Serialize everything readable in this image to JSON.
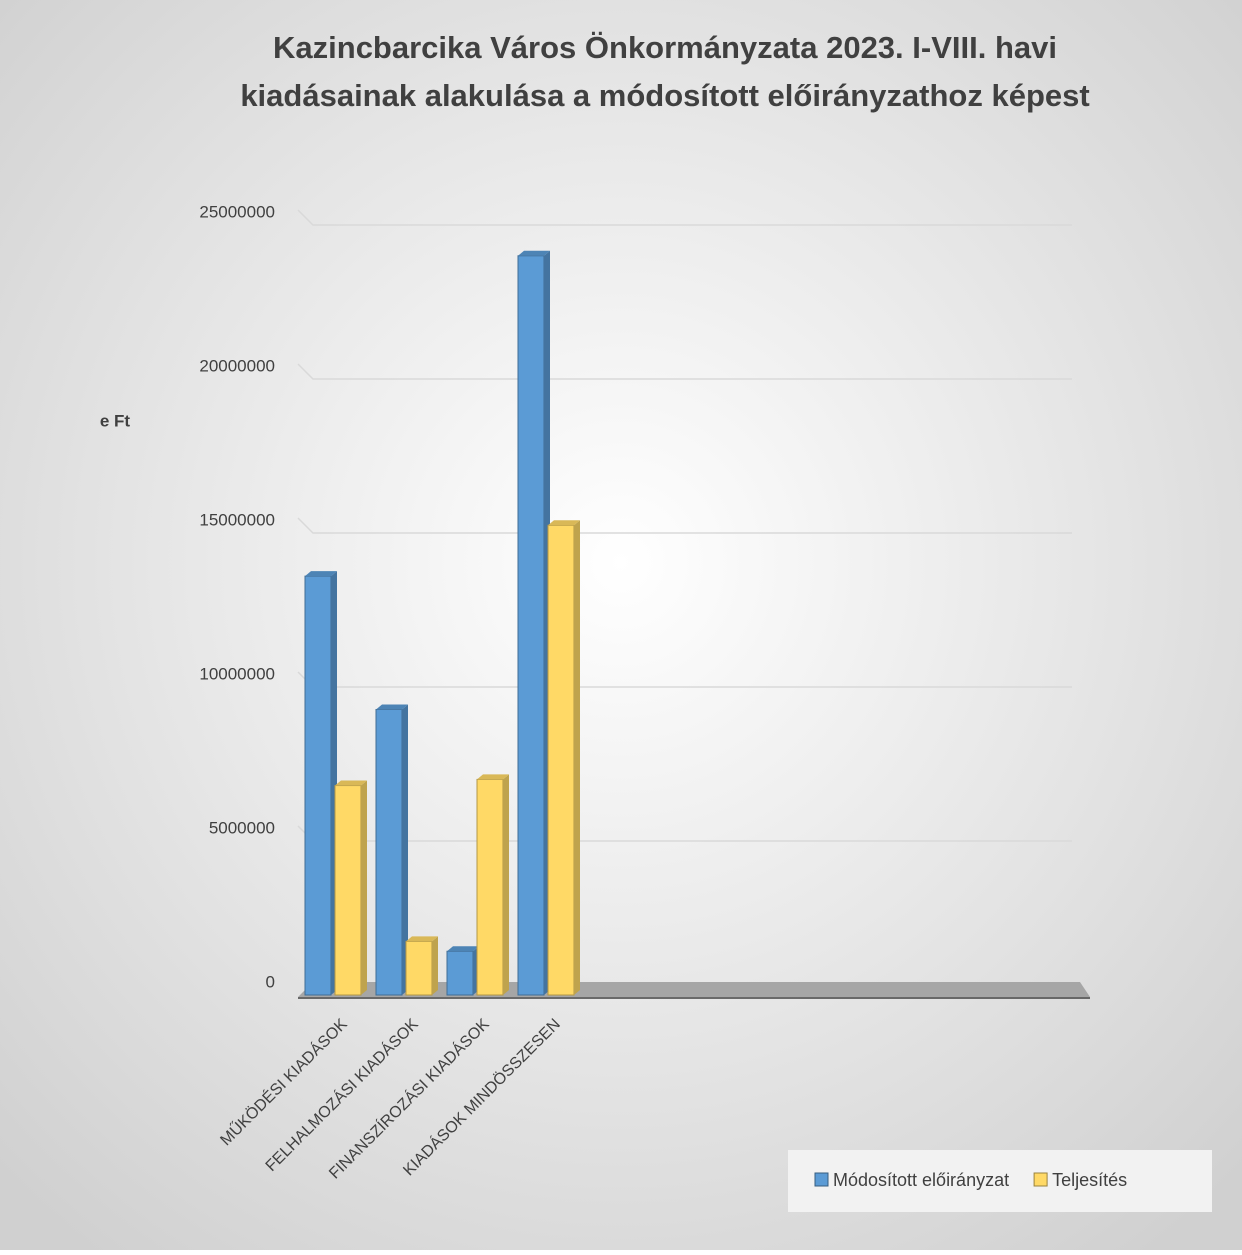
{
  "chart_data": {
    "type": "bar3d",
    "title": "Kazincbarcika Város Önkormányzata 2023. I-VIII. havi",
    "subtitle": "kiadásainak alakulása a módosított előirányzathoz képest",
    "y_label": "e Ft",
    "categories": [
      "MŰKÖDÉSI KIADÁSOK",
      "FELHALMOZÁSI KIADÁSOK",
      "FINANSZÍROZÁSI KIADÁSOK",
      "KIADÁSOK MINDÖSSZESEN"
    ],
    "series": [
      {
        "name": "Módosított előirányzat",
        "color": "#5b9bd5",
        "values": [
          13600000,
          9270000,
          1420000,
          24000000
        ]
      },
      {
        "name": "Teljesítés",
        "color": "#ffd966",
        "values": [
          6800000,
          1740000,
          7000000,
          15250000
        ]
      }
    ],
    "ylim": [
      0,
      25000000
    ],
    "yticks": [
      0,
      5000000,
      10000000,
      15000000,
      20000000,
      25000000
    ],
    "grid": true,
    "legend": "bottom-right"
  }
}
